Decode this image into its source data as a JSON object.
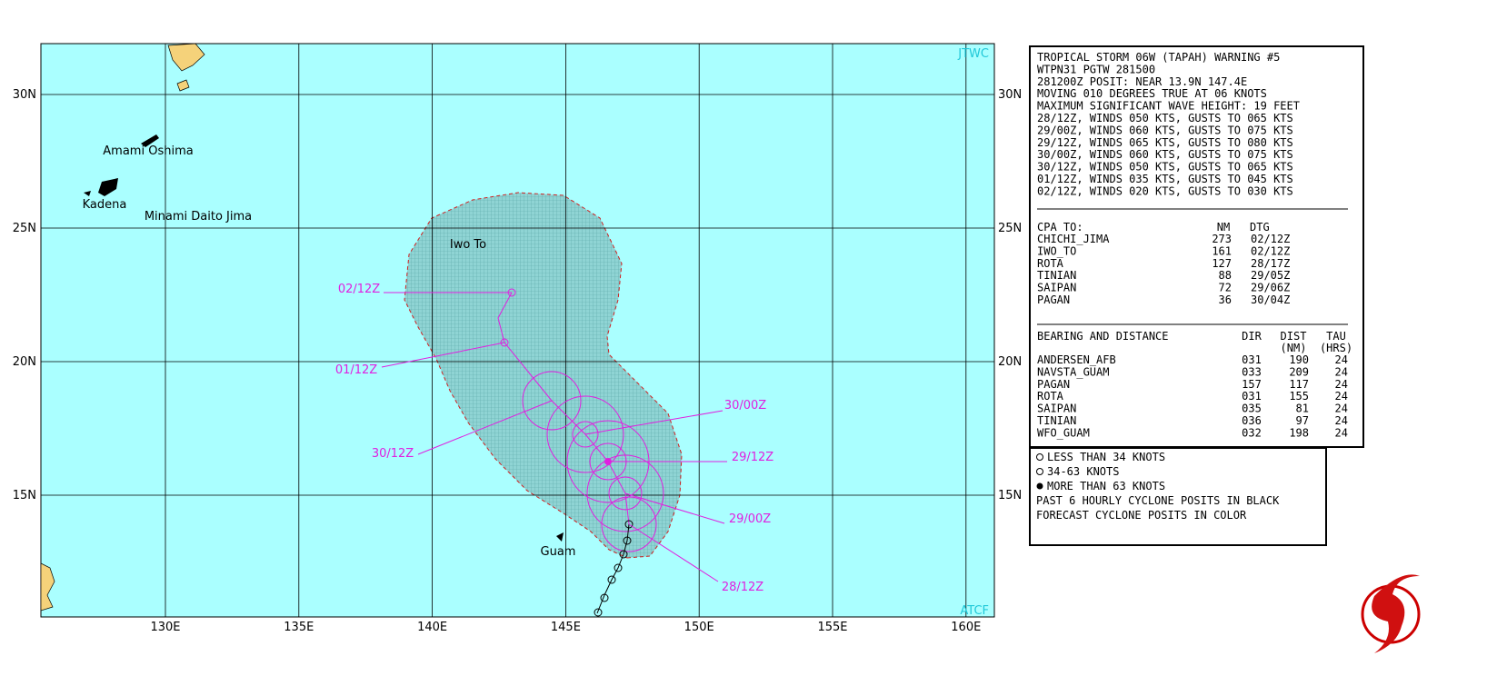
{
  "map": {
    "corners": [
      "JTWC",
      "ATCF"
    ],
    "lon_labels": [
      "130E",
      "135E",
      "140E",
      "145E",
      "150E",
      "155E",
      "160E"
    ],
    "lat_labels": [
      "30N",
      "25N",
      "20N",
      "15N"
    ],
    "places": [
      "Amami Oshima",
      "Kadena",
      "Minami Daito Jima",
      "Iwo To",
      "Guam"
    ],
    "forecast_labels": [
      "02/12Z",
      "01/12Z",
      "30/12Z",
      "30/00Z",
      "29/12Z",
      "29/00Z",
      "28/12Z"
    ]
  },
  "warning": {
    "lines": [
      "TROPICAL STORM 06W (TAPAH) WARNING #5",
      "WTPN31 PGTW 281500",
      "281200Z POSIT: NEAR 13.9N 147.4E",
      "MOVING 010 DEGREES TRUE AT 06 KNOTS",
      "MAXIMUM SIGNIFICANT WAVE HEIGHT: 19 FEET",
      "28/12Z, WINDS 050 KTS, GUSTS TO 065 KTS",
      "29/00Z, WINDS 060 KTS, GUSTS TO 075 KTS",
      "29/12Z, WINDS 065 KTS, GUSTS TO 080 KTS",
      "30/00Z, WINDS 060 KTS, GUSTS TO 075 KTS",
      "30/12Z, WINDS 050 KTS, GUSTS TO 065 KTS",
      "01/12Z, WINDS 035 KTS, GUSTS TO 045 KTS",
      "02/12Z, WINDS 020 KTS, GUSTS TO 030 KTS"
    ]
  },
  "cpa": {
    "header": [
      "CPA TO:",
      "NM",
      "DTG"
    ],
    "rows": [
      [
        "CHICHI_JIMA",
        273,
        "02/12Z"
      ],
      [
        "IWO_TO",
        161,
        "02/12Z"
      ],
      [
        "ROTA",
        127,
        "28/17Z"
      ],
      [
        "TINIAN",
        88,
        "29/05Z"
      ],
      [
        "SAIPAN",
        72,
        "29/06Z"
      ],
      [
        "PAGAN",
        36,
        "30/04Z"
      ]
    ]
  },
  "bearing": {
    "header": [
      "BEARING AND DISTANCE",
      "DIR",
      "DIST",
      "TAU"
    ],
    "subheader": [
      "(NM)",
      "(HRS)"
    ],
    "rows": [
      [
        "ANDERSEN_AFB",
        "031",
        190,
        24
      ],
      [
        "NAVSTA_GUAM",
        "033",
        209,
        24
      ],
      [
        "PAGAN",
        "157",
        117,
        24
      ],
      [
        "ROTA",
        "031",
        155,
        24
      ],
      [
        "SAIPAN",
        "035",
        81,
        24
      ],
      [
        "TINIAN",
        "036",
        97,
        24
      ],
      [
        "WFO_GUAM",
        "032",
        198,
        24
      ]
    ]
  },
  "legend": {
    "lines": [
      "LESS THAN 34 KNOTS",
      "34-63 KNOTS",
      "MORE THAN 63 KNOTS",
      "PAST 6 HOURLY CYCLONE POSITS IN BLACK",
      "FORECAST CYCLONE POSITS IN COLOR"
    ]
  }
}
